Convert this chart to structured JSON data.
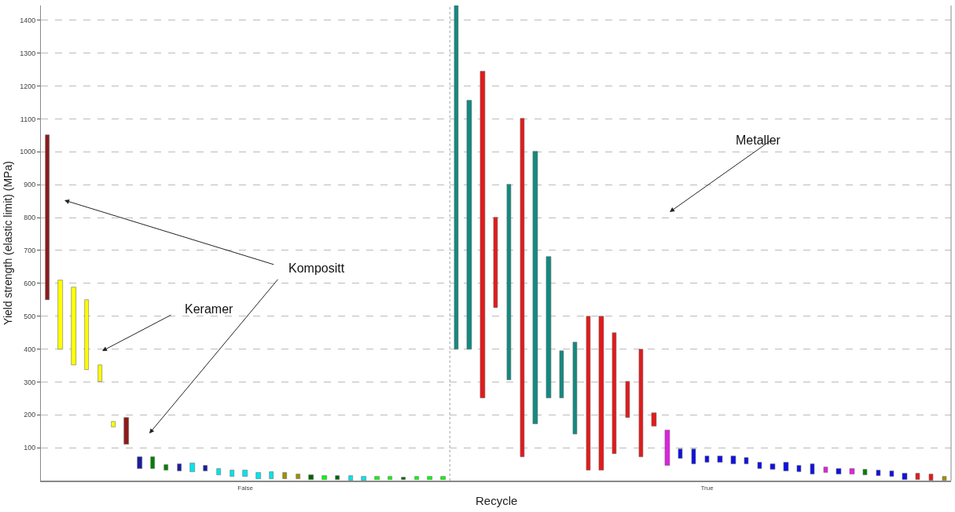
{
  "chart_data": [
    {
      "type": "bar",
      "xlabel": "Recycle",
      "ylabel": "Yield strength (elastic limit) (MPa)",
      "categories": [
        null,
        null,
        null,
        null,
        null,
        null,
        null,
        null,
        null,
        null,
        null,
        null,
        null,
        null,
        null,
        "False",
        null,
        null,
        null,
        null,
        null,
        null,
        null,
        null,
        null,
        null,
        null,
        null,
        null,
        null,
        null
      ],
      "base": [
        550,
        400,
        352,
        336,
        301,
        162,
        110,
        37,
        35,
        30,
        28,
        26,
        28,
        17,
        13,
        13,
        5,
        5,
        5,
        4,
        2,
        2,
        2,
        1,
        1,
        2,
        2,
        2,
        2,
        2,
        2
      ],
      "values": [
        500,
        210,
        235,
        214,
        49,
        18,
        81,
        34,
        36,
        18,
        22,
        27,
        18,
        19,
        19,
        19,
        19,
        21,
        20,
        16,
        15,
        13,
        12,
        13,
        11,
        10,
        9,
        7,
        9,
        9,
        9
      ],
      "colors": [
        "#8b1a1a",
        "#ffff00",
        "#ffff00",
        "#ffff00",
        "#ffff00",
        "#ffff00",
        "#8b1a1a",
        "#1a1aa0",
        "#008000",
        "#008000",
        "#1a1aa0",
        "#00e5ee",
        "#1a1aa0",
        "#00e5ee",
        "#00e5ee",
        "#00e5ee",
        "#00e5ee",
        "#00e5ee",
        "#a09000",
        "#a09000",
        "#006400",
        "#00ff00",
        "#006400",
        "#00e5ee",
        "#00e5ee",
        "#00ff00",
        "#00ff00",
        "#006400",
        "#00ff00",
        "#00ff00",
        "#00ff00"
      ],
      "ylim": [
        0,
        1445
      ],
      "yticks": [
        100,
        200,
        300,
        400,
        500,
        600,
        700,
        800,
        900,
        1000,
        1100,
        1200,
        1300,
        1400
      ],
      "grid": "y",
      "annotations": [
        "Kompositt",
        "Keramer"
      ]
    },
    {
      "type": "bar",
      "categories": [
        null,
        null,
        null,
        null,
        null,
        null,
        null,
        null,
        null,
        null,
        null,
        null,
        null,
        null,
        null,
        null,
        null,
        null,
        null,
        "True",
        null,
        null,
        null,
        null,
        null,
        null,
        null,
        null,
        null,
        null,
        null,
        null,
        null,
        null,
        null,
        null,
        null,
        null
      ],
      "base": [
        400,
        400,
        250,
        525,
        305,
        72,
        172,
        250,
        250,
        141,
        32,
        32,
        82,
        190,
        72,
        165,
        46,
        67,
        51,
        56,
        54,
        49,
        51,
        37,
        34,
        29,
        26,
        20,
        24,
        20,
        18,
        17,
        14,
        11,
        3,
        3,
        1,
        0
      ],
      "values": [
        1045,
        755,
        995,
        275,
        595,
        1028,
        828,
        430,
        143,
        279,
        468,
        468,
        368,
        110,
        328,
        40,
        108,
        29,
        45,
        18,
        19,
        24,
        18,
        18,
        17,
        27,
        20,
        31,
        17,
        17,
        18,
        16,
        18,
        18,
        18,
        18,
        18,
        12
      ],
      "colors": [
        "#138a80",
        "#138a80",
        "#e31a1a",
        "#e31a1a",
        "#138a80",
        "#e31a1a",
        "#138a80",
        "#138a80",
        "#138a80",
        "#138a80",
        "#e31a1a",
        "#e31a1a",
        "#e31a1a",
        "#e31a1a",
        "#e31a1a",
        "#e31a1a",
        "#e020e0",
        "#1010e0",
        "#1010e0",
        "#1010e0",
        "#1010e0",
        "#1010e0",
        "#1010e0",
        "#1010e0",
        "#1010e0",
        "#1010e0",
        "#1010e0",
        "#1010e0",
        "#e020e0",
        "#1010e0",
        "#e020e0",
        "#008000",
        "#1010e0",
        "#1010e0",
        "#1010e0",
        "#e31a1a",
        "#e31a1a",
        "#a09000"
      ],
      "ylim": [
        0,
        1445
      ],
      "yticks": [
        100,
        200,
        300,
        400,
        500,
        600,
        700,
        800,
        900,
        1000,
        1100,
        1200,
        1300,
        1400
      ],
      "grid": "y",
      "tick_labels": "x",
      "annotations": [
        "Metaller"
      ]
    }
  ]
}
